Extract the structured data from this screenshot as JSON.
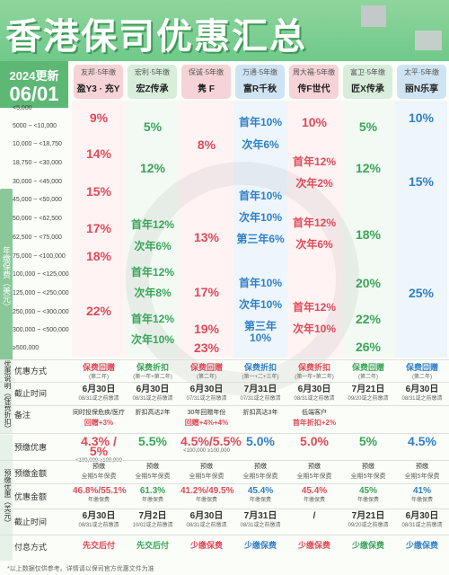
{
  "header": {
    "title": "香港保司优惠汇总"
  },
  "update": {
    "line1": "2024更新",
    "line2": "06/01"
  },
  "row_axis_label": "年缴保费（美元）",
  "columns": [
    {
      "type": "友邦·5年缴",
      "name": "盈Y3 · 充Y",
      "color": "#f6d3d6"
    },
    {
      "type": "宏利·5年缴",
      "name": "宏Z传承",
      "color": "#d8eedb"
    },
    {
      "type": "保诚·5年缴",
      "name": "隽 F",
      "color": "#f6d3d6"
    },
    {
      "type": "万通·5年缴",
      "name": "富R千秋",
      "color": "#cfe4f3"
    },
    {
      "type": "周大福·5年缴",
      "name": "传F世代",
      "color": "#f6d3d6"
    },
    {
      "type": "富卫·5年缴",
      "name": "匠X传承",
      "color": "#d8eedb"
    },
    {
      "type": "太平·5年缴",
      "name": "丽N乐享",
      "color": "#cfe4f3"
    }
  ],
  "ranges": [
    "<5,000",
    "5000 ~ <10,000",
    "10,000 ~ <18,750",
    "18,750 ~ <30,000",
    "30,000 ~ <45,000",
    "45,000 ~ <50,000",
    "50,000 ~ <62,500",
    "62,500 ~ <75,000",
    "75,000 ~ <100,000",
    "100,000 ~ <125,000",
    "125,000 ~ <250,000",
    "250,000 ~ <300,000",
    "300,000 ~ <500,000",
    "≥500,000"
  ],
  "cells": {
    "c0": [
      "9%",
      "14%",
      "15%",
      "17%",
      "18%",
      "22%"
    ],
    "c1": [
      "5%",
      "12%",
      "首年12%",
      "次年6%",
      "首年12%",
      "次年8%",
      "首年12%",
      "次年10%"
    ],
    "c2": [
      "8%",
      "13%",
      "17%",
      "19%",
      "23%"
    ],
    "c3": [
      "首年10%",
      "次年6%",
      "首年10%",
      "次年10%",
      "第三年6%",
      "首年10%",
      "次年10%",
      "第三年10%"
    ],
    "c4": [
      "10%",
      "首年12%",
      "次年2%",
      "首年12%",
      "次年6%",
      "首年12%",
      "次年10%"
    ],
    "c5": [
      "5%",
      "12%",
      "18%",
      "20%",
      "22%",
      "26%"
    ],
    "c6": [
      "10%",
      "15%",
      "25%"
    ]
  },
  "rows": {
    "offer_type": {
      "label": "优惠方式",
      "values": [
        "保费回赠\n(第二年)",
        "保费折扣\n(第一年+第二年)",
        "保费回赠\n(第二年)",
        "保费折扣\n(第一+二+三年)",
        "保费折扣\n(第一年+第二年)",
        "保费回赠\n(第二年)",
        "保费回赠\n(第二年)"
      ]
    },
    "deadline1": {
      "label": "截止时间",
      "values": [
        "6月30日\n08/31或之前缴清",
        "6月30日\n08/31或之前缴清",
        "6月30日\n07/31或之前缴清",
        "7月31日\n07/31或之前缴清",
        "6月30日\n08/31或之前缴清",
        "7月21日\n09/20或之前缴清",
        "6月30日\n08/31或之前缴清"
      ]
    },
    "notes": {
      "label": "备注",
      "values": [
        "同时投保危疾/医疗\n回赠+3%",
        "折扣高达2年",
        "30年回赠年份\n回赠+4%+4%",
        "折扣高达3年",
        "低端客户\n首年折扣+2%",
        "",
        ""
      ]
    },
    "prepay_offer": {
      "label": "预缴优惠",
      "values": [
        "4.3% / 5%",
        "5.5%",
        "4.5%/5.5%",
        "5.0%",
        "5.0%",
        "5%",
        "4.5%"
      ],
      "subs": [
        "<100,000  ≥100,000",
        "",
        "<100,000  ≥100,000",
        "",
        "",
        "",
        ""
      ]
    },
    "prepay_amount": {
      "label": "预缴金额",
      "values": [
        "预缴\n全期5年保费",
        "预缴\n全期5年保费",
        "预缴\n全期5年保费",
        "预缴\n全期5年保费",
        "预缴\n全期5年保费",
        "预缴\n全期5年保费",
        "预缴\n全期5年保费"
      ]
    },
    "offer_amount": {
      "label": "优惠金额",
      "values": [
        "46.8%/55.1%\n年缴保费",
        "61.3%\n年缴保费",
        "41.2%/49.5%\n年缴保费",
        "45.4%\n年缴保费",
        "45.4%\n年缴保费",
        "45%\n年缴保费",
        "41%\n年缴保费"
      ]
    },
    "deadline2": {
      "label": "截止时间",
      "values": [
        "6月30日\n08/31或之前缴清",
        "7月2日\n10/02或之前缴清",
        "6月30日\n08/31或之前缴清",
        "7月31日\n08/31或之前缴清",
        "/",
        "7月21日\n09/20或之前缴清",
        "6月30日\n08/31或之前缴清"
      ]
    },
    "payment": {
      "label": "付息方式",
      "values": [
        "先交后付",
        "先交后付",
        "少缴保费",
        "少缴保费",
        "少缴保费",
        "少缴保费",
        "少缴保费"
      ]
    }
  },
  "side_labels": {
    "top": "优惠说明（保费折扣）",
    "bottom": "预缴优惠（美元）"
  },
  "footer": "*以上数据仅供参考。详情请以保司官方优惠文件为准"
}
